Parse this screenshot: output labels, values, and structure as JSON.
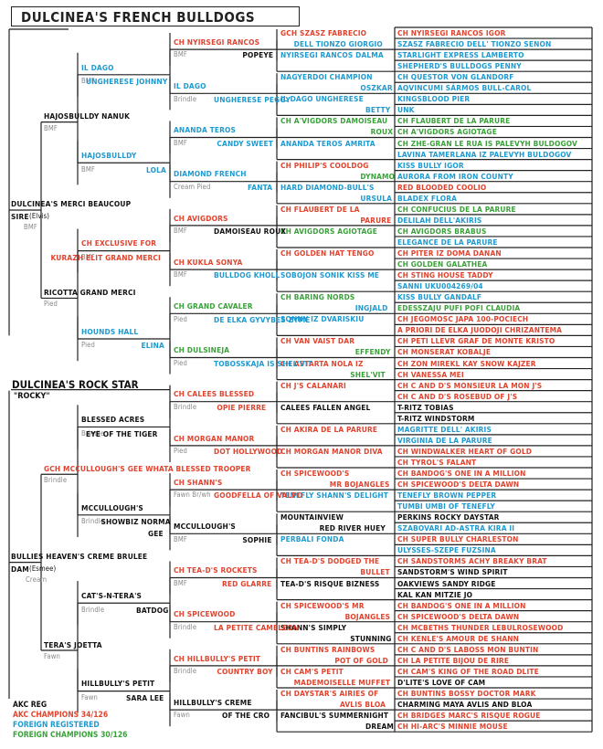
{
  "title": "DULCINEA'S FRENCH BULLDOGS",
  "dog1": {
    "name": "DULCINEA'S MERCI BEAUCOUP",
    "sire_label": "SIRE",
    "nickname": "(Elvis)",
    "color": "BMF",
    "sire": {
      "name": "HAJOSBULLDY NANUK",
      "color": "BMF"
    },
    "dam": {
      "name": "RICOTTA GRAND MERCI",
      "color": "Pied"
    },
    "g3": [
      {
        "name": "IL DAGO",
        "line2": "UNGHERESE JOHNNY",
        "color": "BMF"
      },
      {
        "name": "HAJOSBULLDY",
        "line2": "LOLA",
        "color": "BMF"
      },
      {
        "name": "CH EXCLUSIVE FOR",
        "line2": "KURAZH ELIT GRAND MERCI",
        "color": "BMF"
      },
      {
        "name": "HOUNDS HALL",
        "line2": "ELINA",
        "color": "Pied"
      }
    ],
    "g4": [
      {
        "a": "CH NYIRSEGI RANCOS",
        "b": "POPEYE",
        "c": "BMF"
      },
      {
        "a": "IL DAGO",
        "b": "UNGHERESE PEGGY",
        "c": "Brindle"
      },
      {
        "a": "ANANDA TEROS",
        "b": "CANDY SWEET",
        "c": "BMF"
      },
      {
        "a": "DIAMOND FRENCH",
        "b": "FANTA",
        "c": "Cream Pied"
      },
      {
        "a": "CH AVIGDORS",
        "b": "DAMOISEAU ROUX",
        "c": "BMF"
      },
      {
        "a": "CH KUKLA SONYA",
        "b": "BULLDOG KHOLL",
        "c": "BMF"
      },
      {
        "a": "CH GRAND CAVALER",
        "b": "DE ELKA GYVYBES ZYME",
        "c": "Pied"
      },
      {
        "a": "CH DULSINEJA",
        "b": "TOBOSSKAJA IS SHEL'VIT",
        "c": "Pied"
      }
    ],
    "g5": [
      {
        "a": "GCH SZASZ FABRECIO",
        "b": "DELL TIONZO GIORGIO"
      },
      {
        "a": "NYIRSEGI RANCOS DALMA",
        "b": ""
      },
      {
        "a": "NAGYERDOI CHAMPION",
        "b": "OSZKAR"
      },
      {
        "a": "IL DAGO UNGHERESE",
        "b": "BETTY"
      },
      {
        "a": "CH A'VIGDORS DAMOISEAU",
        "b": "ROUX"
      },
      {
        "a": "ANANDA TEROS AMRITA",
        "b": ""
      },
      {
        "a": "CH PHILIP'S COOLDOG",
        "b": "DYNAMO"
      },
      {
        "a": "HARD DIAMOND-BULL'S",
        "b": "URSULA"
      },
      {
        "a": "CH FLAUBERT DE LA",
        "b": "PARURE"
      },
      {
        "a": "CH AVIGDORS AGIOTAGE",
        "b": ""
      },
      {
        "a": "CH GOLDEN HAT TENGO",
        "b": ""
      },
      {
        "a": "SOBOJON SONIK KISS ME",
        "b": ""
      },
      {
        "a": "CH BARING NORDS",
        "b": "INGJALD"
      },
      {
        "a": "SONNY IZ DVARISKIU",
        "b": ""
      },
      {
        "a": "CH VAN VAIST DAR",
        "b": "EFFENDY"
      },
      {
        "a": "CH ASTARTA NOLA IZ",
        "b": "SHEL'VIT"
      }
    ],
    "g6": [
      "CH NYIRSEGI RANCOS IGOR",
      "SZASZ FABRECIO DELL' TIONZO SENON",
      "STARLIGHT EXPRESS LAMBERTO",
      "SHEPHERD'S BULLDOGS PENNY",
      "CH QUESTOR VON GLANDORF",
      "AQVINCUMI SÁRMOS BULL-CAROL",
      "KINGSBLOOD PIER",
      "UNK",
      "CH FLAUBERT DE LA PARURE",
      "CH A'VIGDORS AGIOTAGE",
      "CH ZHE-GRAN LE RUA IS PALEVYH BULDOGOV",
      "LAVINA TAMERLANA IZ PALEVYH BULDOGOV",
      "KISS BULLY IGOR",
      "AURORA FROM IRON COUNTY",
      "RED BLOODED COOLIO",
      "BLADEX FLORA",
      "CH CONFUCIUS DE LA PARURE",
      "DELILAH DELL'AKIRIS",
      "CH AVIGDORS BRABUS",
      "ELEGANCE DE LA PARURE",
      "CH PITER IZ DOMA DANAN",
      "CH GOLDEN GALATHEA",
      "CH STING HOUSE TADDY",
      "SANNI UKU004269/04",
      "KISS BULLY GANDALF",
      "EDESSZAJU PUFI POFI CLAUDIA",
      "CH JEGOMOSC JAPA 100-POCIECH",
      "A PRIORI DE ELKA JUODOJI CHRIZANTEMA",
      "CH PETI LLEVR GRAF DE MONTE KRISTO",
      "CH MONSERAT KOBALJE",
      "CH ZON MIREKL KAY SNOW KAJZER",
      "CH VANESSA MEI"
    ]
  },
  "dog2": {
    "section_title": "DULCINEA'S ROCK STAR",
    "nickname": "\"ROCKY\"",
    "name": "BULLIES HEAVEN'S CREME BRULEE",
    "dam_label": "DAM",
    "dam_nick": "(Esmee)",
    "color": "Cream",
    "sire": {
      "name": "GCH MCCULLOUGH'S GEE WHATA BLESSED TROOPER",
      "color": "Brindle"
    },
    "dam": {
      "name": "TERA'S JOETTA",
      "color": "Fawn"
    },
    "g3": [
      {
        "name": "BLESSED ACRES",
        "line2": "EYE OF THE TIGER",
        "color": "Brindle"
      },
      {
        "name": "MCCULLOUGH'S",
        "line2": "SHOWBIZ NORMA",
        "extra": "GEE",
        "color": "Brindle"
      },
      {
        "name": "CAT'S-N-TERA'S",
        "line2": "BATDOG",
        "color": "Brindle"
      },
      {
        "name": "HILLBULLY'S PETIT",
        "line2": "SARA LEE",
        "color": "Fawn"
      }
    ],
    "g4": [
      {
        "a": "CH CALEES BLESSED",
        "b": "OPIE PIERRE",
        "c": "Brindle"
      },
      {
        "a": "CH MORGAN MANOR",
        "b": "DOT HOLLYWOOD",
        "c": "Pied"
      },
      {
        "a": "CH SHANN'S",
        "b": "GOODFELLA OF VALPO",
        "c": "Fawn Br/wh"
      },
      {
        "a": "MCCULLOUGH'S",
        "b": "SOPHIE",
        "c": "BMF"
      },
      {
        "a": "CH TEA-D'S ROCKETS",
        "b": "RED GLARRE",
        "c": "BMF"
      },
      {
        "a": "CH SPICEWOOD",
        "b": "LA PETITE CAMELEON",
        "c": "Brindle"
      },
      {
        "a": "CH HILLBULLY'S PETIT",
        "b": "COUNTRY BOY",
        "c": "Brindle"
      },
      {
        "a": "HILLBULLY'S CREME",
        "b": "OF THE CRO",
        "c": "Fawn"
      }
    ],
    "g5": [
      {
        "a": "CH J'S CALANARI",
        "b": ""
      },
      {
        "a": "CALEES FALLEN ANGEL",
        "b": ""
      },
      {
        "a": "CH AKIRA DE LA PARURE",
        "b": ""
      },
      {
        "a": "CH MORGAN MANOR DIVA",
        "b": ""
      },
      {
        "a": "CH SPICEWOOD'S",
        "b": "MR BOJANGLES"
      },
      {
        "a": "TENEFLY SHANN'S DELIGHT",
        "b": ""
      },
      {
        "a": "MOUNTAINVIEW",
        "b": "RED RIVER HUEY"
      },
      {
        "a": "PERBALI FONDA",
        "b": ""
      },
      {
        "a": "CH TEA-D'S DODGED THE",
        "b": "BULLET"
      },
      {
        "a": "TEA-D'S RISQUE BIZNESS",
        "b": ""
      },
      {
        "a": "CH SPICEWOOD'S MR",
        "b": "BOJANGLES"
      },
      {
        "a": "SHANN'S SIMPLY",
        "b": "STUNNING"
      },
      {
        "a": "CH BUNTINS RAINBOWS",
        "b": "POT OF GOLD"
      },
      {
        "a": "CH CAM'S PETIT",
        "b": "MADEMOISELLE MUFFET"
      },
      {
        "a": "CH DAYSTAR'S AIRIES OF",
        "b": "AVLIS BLOA"
      },
      {
        "a": "FANCIBUL'S SUMMERNIGHT",
        "b": "DREAM"
      }
    ],
    "g6": [
      "CH C AND D'S MONSIEUR LA MON J'S",
      "CH C AND D'S ROSEBUD OF J'S",
      "T-RITZ TOBIAS",
      "T-RITZ WINDSTORM",
      "MAGRITTE DELL' AKIRIS",
      "VIRGINIA DE LA PARURE",
      "CH WINDWALKER HEART OF GOLD",
      "CH TYROL'S FALANT",
      "CH BANDOG'S ONE IN A MILLION",
      "CH SPICEWOOD'S DELTA DAWN",
      "TENEFLY BROWN PEPPER",
      "TUMBI UMBI OF TENEFLY",
      "PERKINS ROCKY DAYSTAR",
      "SZABOVARI AD-ASTRA KIRA II",
      "CH SUPER BULLY CHARLESTON",
      "ULYSSES-SZEPE FUZSINA",
      "CH SANDSTORMS ACHY BREAKY BRAT",
      "SANDSTORM'S WIND SPIRIT",
      "OAKVIEWS SANDY RIDGE",
      "KAL KAN MITZIE JO",
      "CH BANDOG'S ONE IN A MILLION",
      "CH SPICEWOOD'S DELTA DAWN",
      "CH MCBETHS THUNDER LEBULROSEWOOD",
      "CH KENLE'S AMOUR DE SHANN",
      "CH C AND D'S LABOSS MON BUNTIN",
      "CH LA PETITE BIJOU DE RIRE",
      "CH CAM'S KING OF THE ROAD DLITE",
      "D'LITE'S LOVE OF CAM",
      "CH BUNTINS BOSSY DOCTOR MARK",
      "CHARMING MAYA AVLIS AND BLOA",
      "CH BRIDGES MARC'S RISQUE ROGUE",
      "CH HI-ARC'S MINNIE MOUSE"
    ]
  },
  "legend": {
    "akc_reg": "AKC REG",
    "akc": "AKC CHAMPIONS  34/126",
    "foreign": "FOREIGN REGISTERED",
    "foreign_ch": "FOREIGN CHAMPIONS  30/126"
  },
  "colors": {
    "red": "#e0442f",
    "green": "#3aa13a",
    "blue": "#1f9ad0",
    "black": "#111111"
  }
}
